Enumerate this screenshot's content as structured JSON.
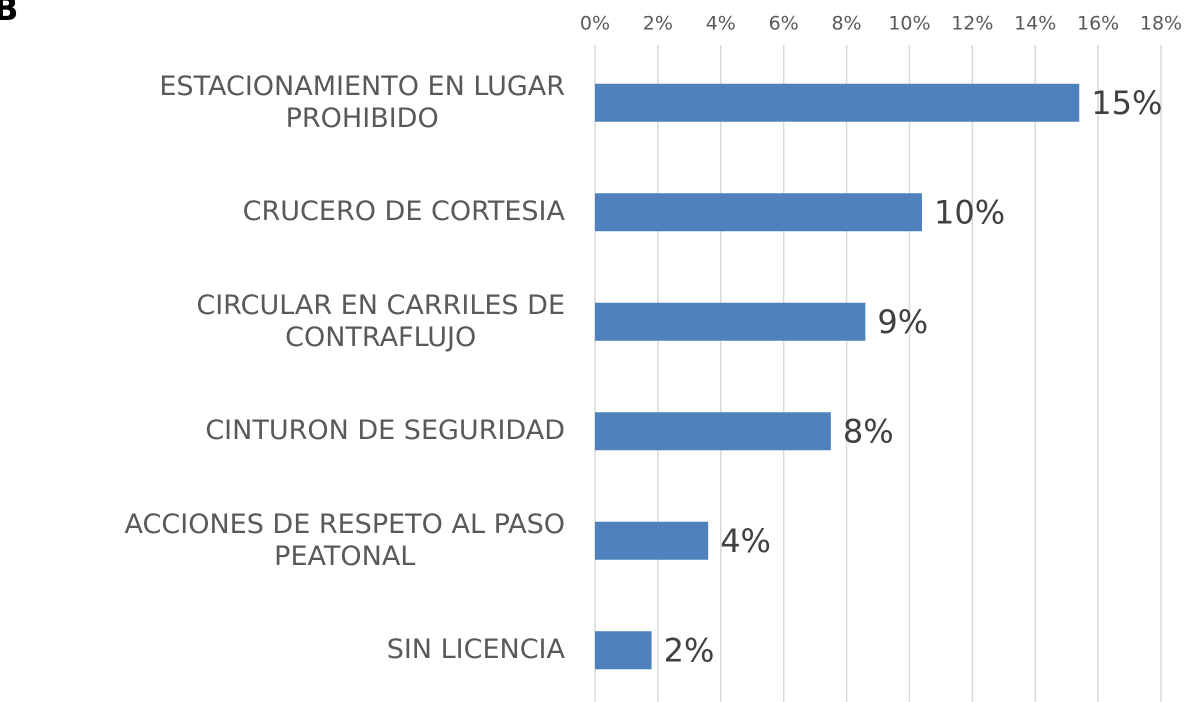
{
  "chart_data": {
    "type": "bar",
    "orientation": "horizontal",
    "title": "B",
    "categories": [
      "ESTACIONAMIENTO EN LUGAR\nPROHIBIDO",
      "CRUCERO DE CORTESIA",
      "CIRCULAR EN CARRILES DE\nCONTRAFLUJO",
      "CINTURON DE SEGURIDAD",
      "ACCIONES DE RESPETO AL PASO\nPEATONAL",
      "SIN LICENCIA"
    ],
    "values": [
      15.4,
      10.4,
      8.6,
      7.5,
      3.6,
      1.8
    ],
    "value_labels": [
      "15%",
      "10%",
      "9%",
      "8%",
      "4%",
      "2%"
    ],
    "color": "#4f81bd",
    "xlim": [
      0,
      18
    ],
    "xticks": [
      {
        "value": 0,
        "label": "0%"
      },
      {
        "value": 2,
        "label": "2%"
      },
      {
        "value": 4,
        "label": "4%"
      },
      {
        "value": 6,
        "label": "6%"
      },
      {
        "value": 8,
        "label": "8%"
      },
      {
        "value": 10,
        "label": "10%"
      },
      {
        "value": 12,
        "label": "12%"
      },
      {
        "value": 14,
        "label": "14%"
      },
      {
        "value": 16,
        "label": "16%"
      },
      {
        "value": 18,
        "label": "18%"
      }
    ],
    "grid": true
  }
}
